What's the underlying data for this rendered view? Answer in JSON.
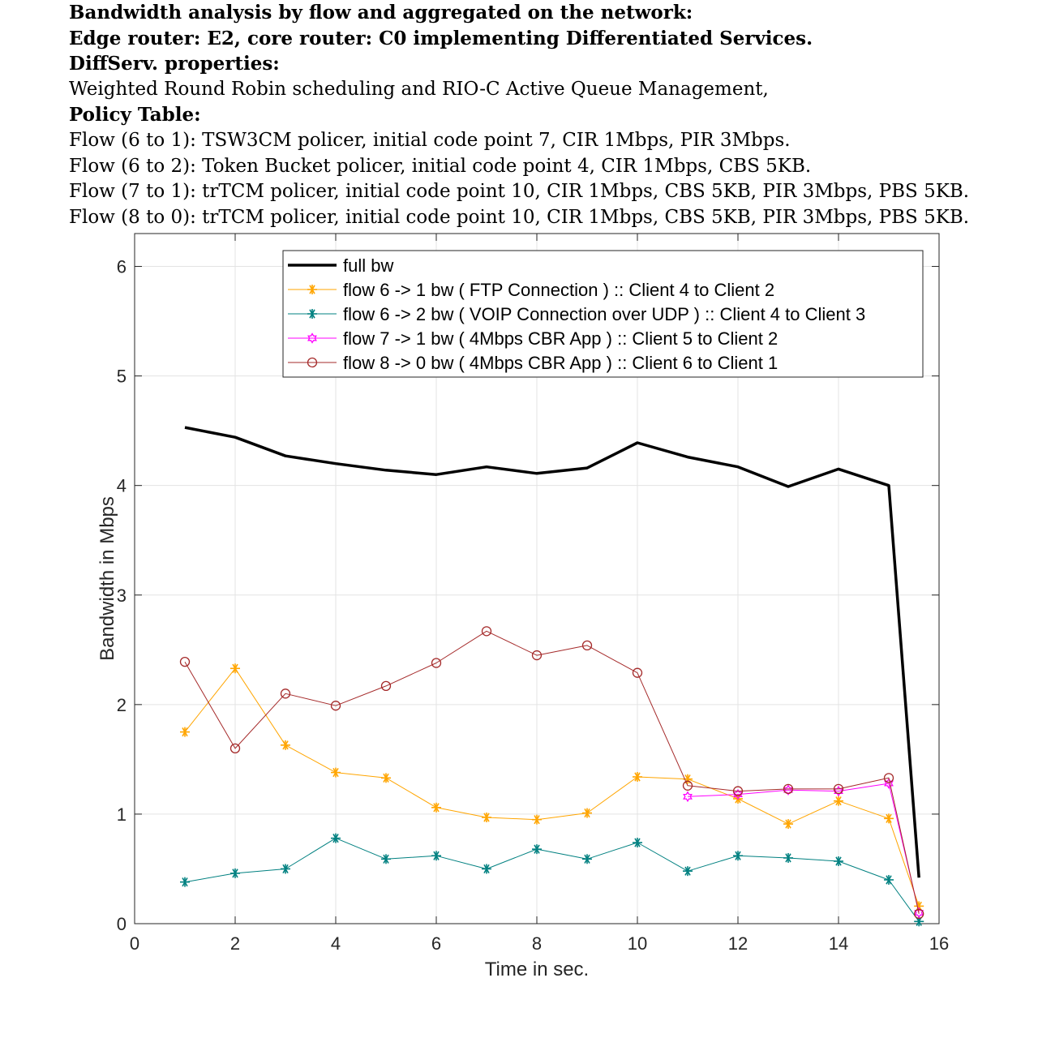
{
  "title_lines": [
    {
      "text": "Bandwidth analysis by flow and aggregated on the network:",
      "bold": true
    },
    {
      "text": "Edge router: E2, core router: C0 implementing Differentiated Services.",
      "bold": true
    },
    {
      "text": "DiffServ. properties:",
      "bold": true
    },
    {
      "text": "Weighted Round Robin scheduling and RIO-C Active Queue Management,",
      "bold": false
    },
    {
      "text": "Policy Table:",
      "bold": true
    },
    {
      "text": "Flow (6 to 1): TSW3CM policer, initial code point 7, CIR 1Mbps, PIR 3Mbps.",
      "bold": false
    },
    {
      "text": "Flow (6 to 2): Token Bucket policer, initial code point 4, CIR 1Mbps, CBS 5KB.",
      "bold": false
    },
    {
      "text": "Flow (7 to 1): trTCM policer, initial code point 10, CIR 1Mbps, CBS 5KB, PIR 3Mbps, PBS 5KB.",
      "bold": false
    },
    {
      "text": "Flow (8 to 0): trTCM policer, initial code point 10, CIR 1Mbps, CBS 5KB, PIR 3Mbps, PBS 5KB.",
      "bold": false
    }
  ],
  "chart_data": {
    "type": "line",
    "xlabel": "Time in sec.",
    "ylabel": "Bandwidth in Mbps",
    "xlim": [
      0,
      16
    ],
    "ylim": [
      0,
      6.3
    ],
    "xticks": [
      0,
      2,
      4,
      6,
      8,
      10,
      12,
      14,
      16
    ],
    "yticks": [
      0,
      1,
      2,
      3,
      4,
      5,
      6
    ],
    "grid": true,
    "legend_position": "top-center",
    "series": [
      {
        "name": "full bw",
        "color": "#000000",
        "marker": "none",
        "line_width": "thick",
        "x": [
          1,
          2,
          3,
          4,
          5,
          6,
          7,
          8,
          9,
          10,
          11,
          12,
          13,
          14,
          15,
          15.6
        ],
        "y": [
          4.53,
          4.44,
          4.27,
          4.2,
          4.14,
          4.1,
          4.17,
          4.11,
          4.16,
          4.39,
          4.26,
          4.17,
          3.99,
          4.15,
          4.0,
          0.42
        ]
      },
      {
        "name": "flow 6 -> 1 bw ( FTP Connection ) :: Client 4 to Client 2",
        "color": "#ffa500",
        "marker": "asterisk",
        "x": [
          1,
          2,
          3,
          4,
          5,
          6,
          7,
          8,
          9,
          10,
          11,
          12,
          13,
          14,
          15,
          15.6
        ],
        "y": [
          1.75,
          2.33,
          1.63,
          1.38,
          1.33,
          1.06,
          0.97,
          0.95,
          1.01,
          1.34,
          1.32,
          1.14,
          0.91,
          1.12,
          0.96,
          0.16
        ]
      },
      {
        "name": "flow 6 -> 2 bw ( VOIP Connection over UDP ) :: Client 4 to Client 3",
        "color": "#008080",
        "marker": "asterisk",
        "x": [
          1,
          2,
          3,
          4,
          5,
          6,
          7,
          8,
          9,
          10,
          11,
          12,
          13,
          14,
          15,
          15.6
        ],
        "y": [
          0.38,
          0.46,
          0.5,
          0.78,
          0.59,
          0.62,
          0.5,
          0.68,
          0.59,
          0.74,
          0.48,
          0.62,
          0.6,
          0.57,
          0.4,
          0.02
        ]
      },
      {
        "name": "flow 7 -> 1 bw ( 4Mbps CBR App )  :: Client 5 to Client 2",
        "color": "#ff00ff",
        "marker": "hexagram",
        "x": [
          11,
          12,
          13,
          14,
          15,
          15.6
        ],
        "y": [
          1.16,
          1.18,
          1.22,
          1.21,
          1.28,
          0.1
        ]
      },
      {
        "name": "flow 8 -> 0 bw ( 4Mbps CBR App )  :: Client 6 to Client 1",
        "color": "#a52a2a",
        "marker": "circle",
        "x": [
          1,
          2,
          3,
          4,
          5,
          6,
          7,
          8,
          9,
          10,
          11,
          12,
          13,
          14,
          15,
          15.6
        ],
        "y": [
          2.39,
          1.6,
          2.1,
          1.99,
          2.17,
          2.38,
          2.67,
          2.45,
          2.54,
          2.29,
          1.26,
          1.21,
          1.23,
          1.23,
          1.33,
          0.09
        ]
      }
    ]
  }
}
